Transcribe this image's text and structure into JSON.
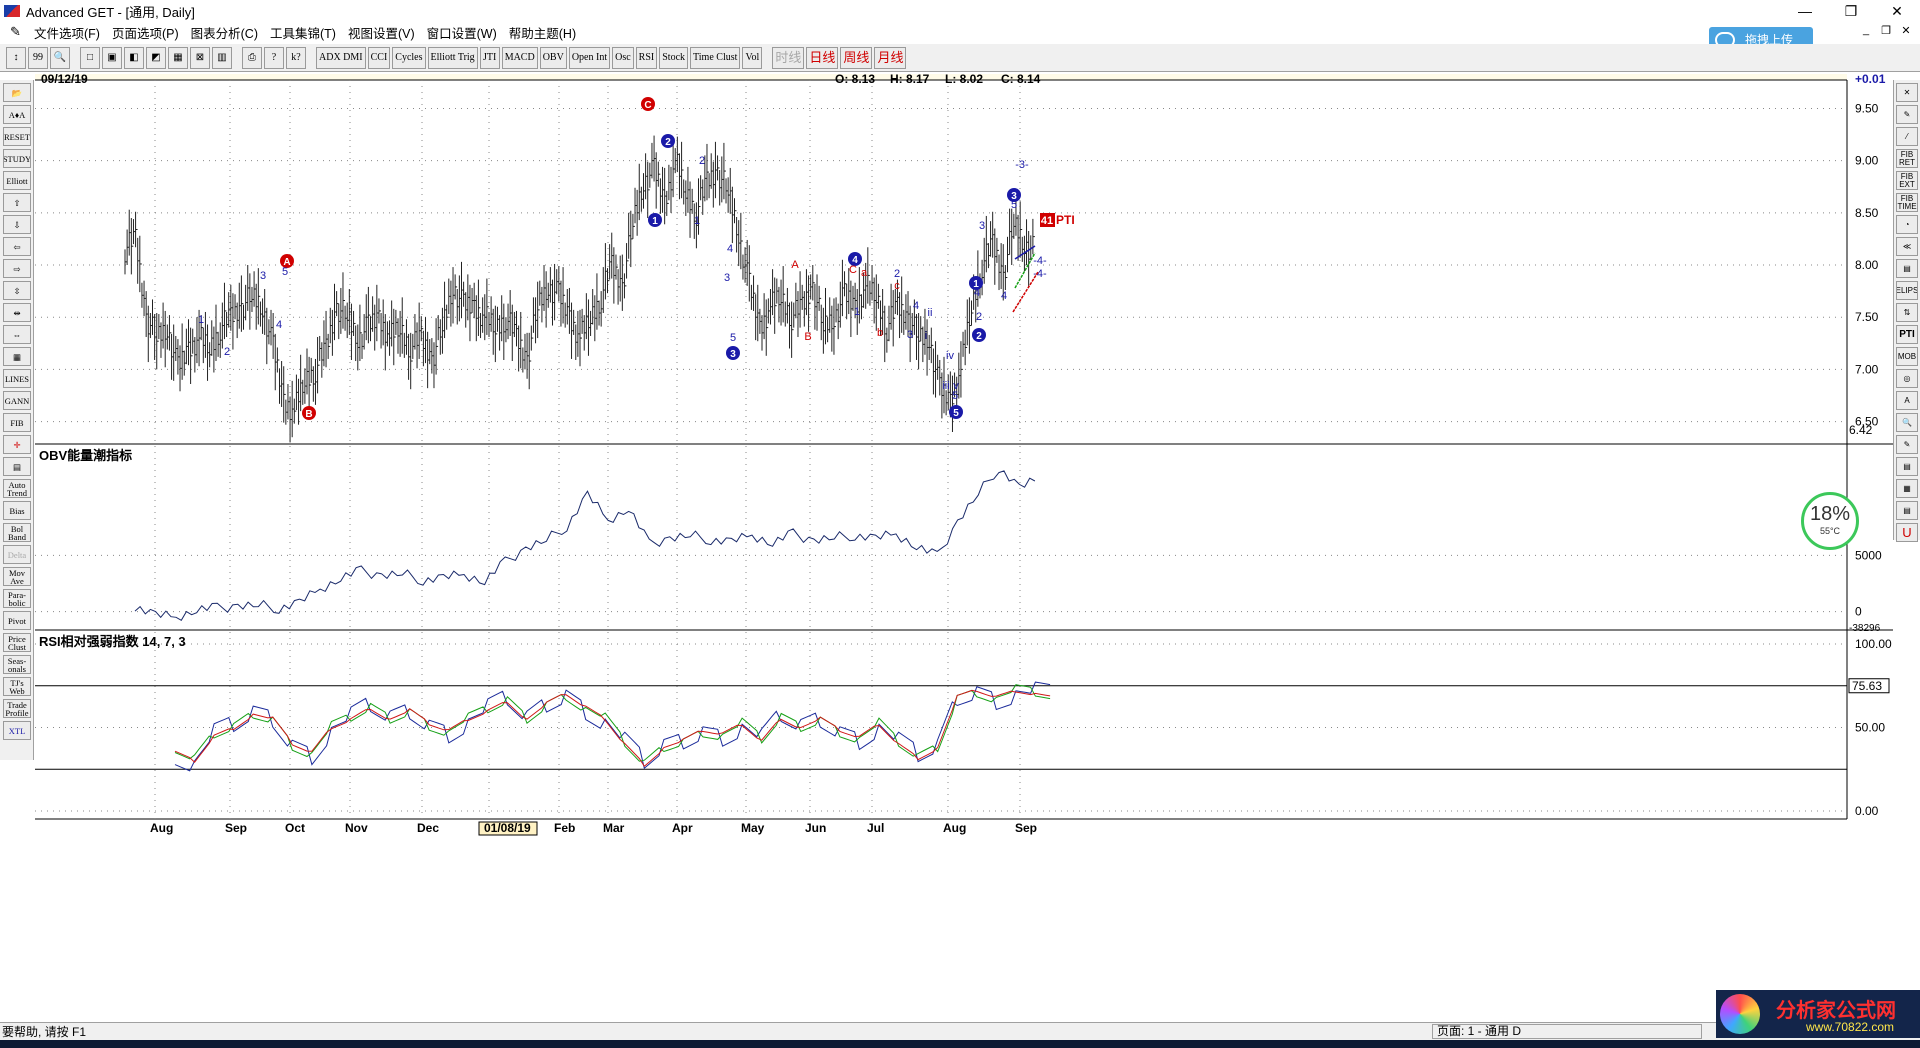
{
  "window": {
    "title": "Advanced GET - [通用, Daily]",
    "controls": {
      "minimize": "—",
      "maximize": "❐",
      "close": "✕"
    }
  },
  "menu": [
    "文件选项(F)",
    "页面选项(P)",
    "图表分析(C)",
    "工具集锦(T)",
    "视图设置(V)",
    "窗口设置(W)",
    "帮助主题(H)"
  ],
  "upload_button": "拖拽上传",
  "toolbar": {
    "buttons": [
      "↕",
      "99",
      "🔍",
      "□",
      "▣",
      "◧",
      "◩",
      "▦",
      "⊠",
      "▥",
      "⎙",
      "?",
      "k?",
      "ADX DMI",
      "CCI",
      "Cycles",
      "Elliott Trig",
      "JTI",
      "MACD",
      "OBV",
      "Open Int",
      "Osc",
      "RSI",
      "Stock",
      "Time Clust",
      "Vol"
    ],
    "periods": [
      {
        "label": "时线",
        "state": "disabled"
      },
      {
        "label": "日线",
        "state": "active"
      },
      {
        "label": "周线",
        "state": "active"
      },
      {
        "label": "月线",
        "state": "active"
      }
    ]
  },
  "left_tools": [
    "📂",
    "A♦A",
    "RESET",
    "STUDY",
    "Elliott",
    "⇧",
    "⇩",
    "⇦",
    "⇨",
    "⇳",
    "⇹",
    "⇔",
    "▦",
    "LINES",
    "GANN",
    "FIB",
    "✛",
    "▤",
    "Auto Trend",
    "Bias",
    "Bol Band",
    "Delta",
    "Mov Ave",
    "Para-bolic",
    "Pivot",
    "Price Clust",
    "Seas-onals",
    "TJ's Web",
    "Trade Profile",
    "XTL"
  ],
  "right_tools": [
    "✕",
    "✎",
    "⁄",
    "FIB RET",
    "FIB EXT",
    "FIB TIME",
    "◔",
    "≪",
    "▤",
    "ELIPS",
    "⇅",
    "PTI",
    "MOB",
    "◎",
    "A",
    "🔍",
    "✎",
    "▤",
    "▦",
    "▤",
    "U"
  ],
  "chart": {
    "date": "09/12/19",
    "ohlc": {
      "o": "O: 8.13",
      "h": "H: 8.17",
      "l": "L: 8.02",
      "c": "C: 8.14"
    },
    "change": "+0.01",
    "price_ticks": [
      "9.50",
      "9.00",
      "8.50",
      "8.00",
      "7.50",
      "7.00",
      "6.50"
    ],
    "last_price": "6.42",
    "pti_value": "41",
    "pti_label": "PTI",
    "obv_title": "OBV能量潮指标",
    "obv_ticks": [
      "5000",
      "0"
    ],
    "obv_bottom": "-38296",
    "rsi_title": "RSI相对强弱指数 14, 7, 3",
    "rsi_ticks": [
      "100.00",
      "50.00",
      "0.00"
    ],
    "rsi_last": "75.63",
    "months": [
      "Aug",
      "Sep",
      "Oct",
      "Nov",
      "Dec",
      "01/08/19",
      "Feb",
      "Mar",
      "Apr",
      "May",
      "Jun",
      "Jul",
      "Aug",
      "Sep"
    ],
    "wave_labels": [
      "C",
      "2",
      "1",
      "2",
      "1",
      "4",
      "3",
      "5",
      "3",
      "A",
      "B",
      "4",
      "C",
      "a",
      "b",
      "c",
      "2",
      "1",
      "4",
      "3",
      "i",
      "ii",
      "iv",
      "iii",
      "v",
      "5",
      "5",
      "3",
      "3",
      "-3-",
      "5",
      "1",
      "4",
      "2",
      "2",
      "4",
      "-4-",
      "-4-",
      "A",
      "5",
      "3",
      "4",
      "B",
      "1",
      "2"
    ],
    "colors": {
      "wave_blue": "#1a1aa8",
      "wave_red": "#d00000",
      "bars": "#222222",
      "grid": "#9a9a9a",
      "rsi_green": "#16a016",
      "rsi_red": "#d01818",
      "rsi_blue": "#1a2a9a"
    }
  },
  "chart_data": {
    "type": "line",
    "price_bars": {
      "x_labels": [
        "Aug",
        "Sep",
        "Oct",
        "Nov",
        "Dec",
        "01/08/19",
        "Feb",
        "Mar",
        "Apr",
        "May",
        "Jun",
        "Jul",
        "Aug",
        "Sep"
      ],
      "closes": [
        8.15,
        8.25,
        7.5,
        7.3,
        7.4,
        7.0,
        7.2,
        7.3,
        7.2,
        7.4,
        7.5,
        7.6,
        7.7,
        7.6,
        7.2,
        6.7,
        6.6,
        6.9,
        7.0,
        7.2,
        7.6,
        7.5,
        7.3,
        7.4,
        7.5,
        7.3,
        7.4,
        7.2,
        7.3,
        7.1,
        7.4,
        7.8,
        7.6,
        7.6,
        7.5,
        7.4,
        7.5,
        7.3,
        7.1,
        7.6,
        7.8,
        7.7,
        7.5,
        7.3,
        7.5,
        7.7,
        8.0,
        7.8,
        8.4,
        8.8,
        8.9,
        8.6,
        9.0,
        8.7,
        8.5,
        8.8,
        8.9,
        8.7,
        8.3,
        7.8,
        7.4,
        7.6,
        7.7,
        7.5,
        7.6,
        7.8,
        7.4,
        7.5,
        7.7,
        7.6,
        7.8,
        7.7,
        7.4,
        7.6,
        7.5,
        7.3,
        7.3,
        6.8,
        6.7,
        7.0,
        7.6,
        8.0,
        8.2,
        7.9,
        8.4,
        8.2,
        8.14
      ],
      "ylim": [
        6.4,
        9.6
      ]
    },
    "obv": {
      "ylim": [
        -300,
        14000
      ],
      "values": [
        500,
        -300,
        -500,
        200,
        300,
        500,
        600,
        300,
        800,
        2000,
        3000,
        3600,
        3200,
        3400,
        2800,
        3000,
        3300,
        2700,
        4400,
        5600,
        6400,
        7600,
        10400,
        8100,
        9200,
        6000,
        6500,
        6800,
        6400,
        6200,
        6800,
        6100,
        6900,
        6300,
        6600,
        6800,
        6500,
        6900,
        5800,
        4900,
        8000,
        10500,
        12800,
        11000,
        11800
      ]
    },
    "rsi": {
      "ylim": [
        0,
        100
      ],
      "values": [
        35,
        30,
        45,
        50,
        58,
        55,
        40,
        35,
        50,
        55,
        62,
        55,
        60,
        52,
        48,
        55,
        60,
        66,
        55,
        64,
        70,
        62,
        55,
        40,
        28,
        38,
        42,
        48,
        46,
        52,
        42,
        56,
        50,
        55,
        48,
        44,
        52,
        40,
        32,
        38,
        68,
        72,
        68,
        72,
        70,
        68
      ]
    }
  },
  "status": {
    "help": "要帮助, 请按 F1",
    "page": "页面: 1 - 通用 D"
  },
  "gauge": {
    "pct": "18%",
    "temp": "55°C"
  },
  "watermark": {
    "title": "分析家公式网",
    "url": "www.70822.com"
  }
}
